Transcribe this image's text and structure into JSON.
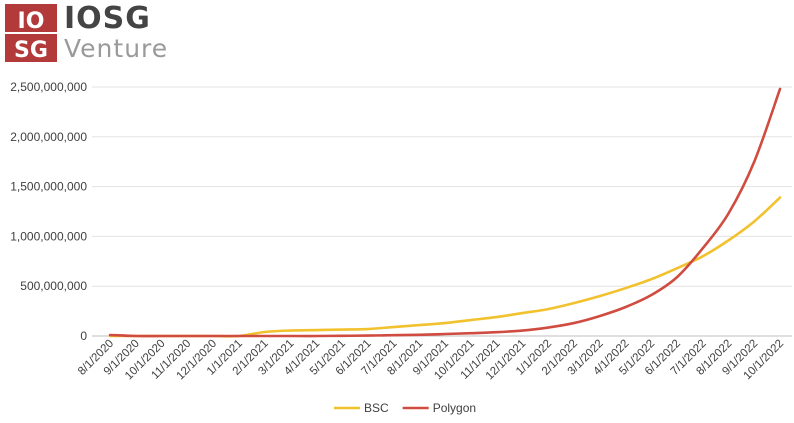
{
  "logo": {
    "mark_top": "IO",
    "mark_bottom": "SG",
    "wordmark": "IOSG",
    "subtitle": "Venture",
    "brand_color": "#b23a3a"
  },
  "chart_data": {
    "type": "line",
    "title": "",
    "xlabel": "",
    "ylabel": "",
    "ylim": [
      0,
      2500000000
    ],
    "yticks": [
      0,
      500000000,
      1000000000,
      1500000000,
      2000000000,
      2500000000
    ],
    "ytick_labels": [
      "0",
      "500,000,000",
      "1,000,000,000",
      "1,500,000,000",
      "2,000,000,000",
      "2,500,000,000"
    ],
    "grid": "horizontal",
    "legend": "bottom",
    "categories": [
      "8/1/2020",
      "9/1/2020",
      "10/1/2020",
      "11/1/2020",
      "12/1/2020",
      "1/1/2021",
      "2/1/2021",
      "3/1/2021",
      "4/1/2021",
      "5/1/2021",
      "6/1/2021",
      "7/1/2021",
      "8/1/2021",
      "9/1/2021",
      "10/1/2021",
      "11/1/2021",
      "12/1/2021",
      "1/1/2022",
      "2/1/2022",
      "3/1/2022",
      "4/1/2022",
      "5/1/2022",
      "6/1/2022",
      "7/1/2022",
      "8/1/2022",
      "9/1/2022",
      "10/1/2022"
    ],
    "series": [
      {
        "name": "BSC",
        "color": "#f2c12e",
        "values": [
          0,
          0,
          0,
          0,
          0,
          0,
          40000000,
          55000000,
          60000000,
          65000000,
          70000000,
          90000000,
          110000000,
          130000000,
          160000000,
          190000000,
          230000000,
          270000000,
          330000000,
          400000000,
          480000000,
          570000000,
          680000000,
          800000000,
          960000000,
          1150000000,
          1390000000
        ]
      },
      {
        "name": "Polygon",
        "color": "#d04b40",
        "values": [
          10000000,
          0,
          0,
          0,
          0,
          0,
          0,
          0,
          0,
          2000000,
          4000000,
          8000000,
          12000000,
          20000000,
          28000000,
          38000000,
          55000000,
          85000000,
          130000000,
          200000000,
          290000000,
          410000000,
          590000000,
          880000000,
          1230000000,
          1750000000,
          2480000000
        ]
      }
    ]
  }
}
